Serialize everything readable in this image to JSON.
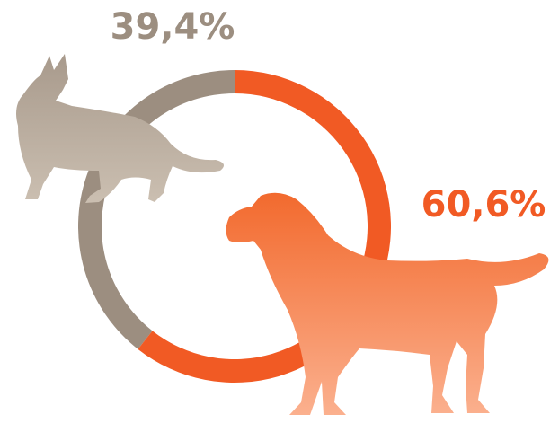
{
  "chart_data": {
    "type": "donut",
    "values": [
      39.4,
      60.6
    ],
    "value_labels": [
      "39,4%",
      "60,6%"
    ],
    "colors": [
      "#9c8e80",
      "#f15a24"
    ]
  }
}
